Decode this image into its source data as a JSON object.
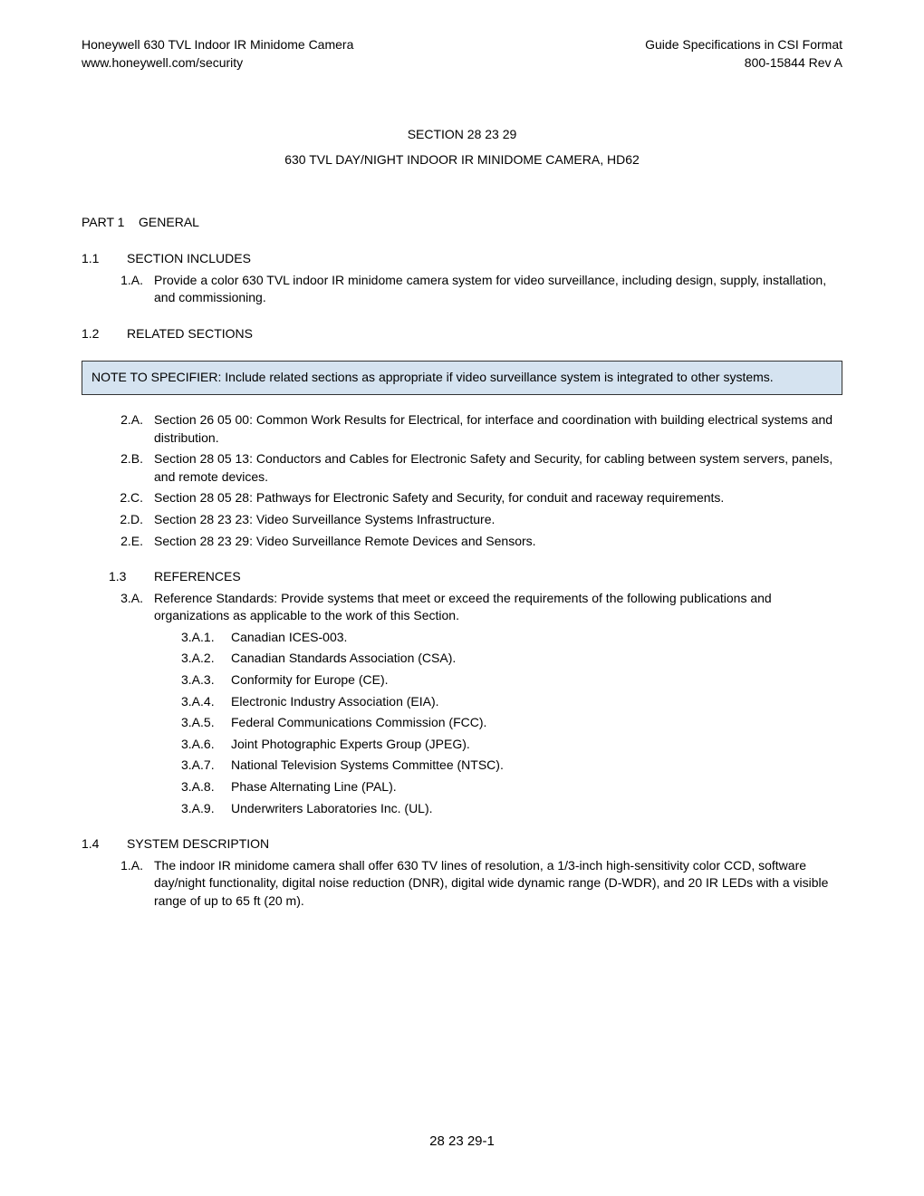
{
  "header": {
    "left_line1": "Honeywell 630 TVL Indoor IR Minidome Camera",
    "left_line2": "www.honeywell.com/security",
    "right_line1": "Guide Specifications in CSI Format",
    "right_line2": "800-15844 Rev A"
  },
  "section": {
    "number": "SECTION 28 23 29",
    "title": "630 TVL DAY/NIGHT INDOOR IR MINIDOME CAMERA, HD62"
  },
  "part1": {
    "heading_label": "PART 1",
    "heading_text": "GENERAL"
  },
  "sub11": {
    "label": "1.1",
    "title": "SECTION INCLUDES",
    "item_1a_label": "1.A.",
    "item_1a_text": "Provide a color 630 TVL indoor IR minidome camera system for video surveillance, including design, supply, installation, and commissioning."
  },
  "sub12": {
    "label": "1.2",
    "title": "RELATED SECTIONS"
  },
  "note": "NOTE TO SPECIFIER: Include related sections as appropriate if video surveillance system is integrated to other systems.",
  "sub12_items": {
    "a_label": "2.A.",
    "a_text": "Section 26 05 00: Common Work Results for Electrical, for interface and coordination with building electrical systems and distribution.",
    "b_label": "2.B.",
    "b_text": "Section 28 05 13: Conductors and Cables for Electronic Safety and Security, for cabling between system servers, panels, and remote devices.",
    "c_label": "2.C.",
    "c_text": "Section 28 05 28: Pathways for Electronic Safety and Security, for conduit and raceway requirements.",
    "d_label": "2.D.",
    "d_text": "Section 28 23 23: Video Surveillance Systems Infrastructure.",
    "e_label": "2.E.",
    "e_text": "Section 28 23 29: Video Surveillance Remote Devices and Sensors."
  },
  "sub13": {
    "label": "1.3",
    "title": "REFERENCES",
    "a_label": "3.A.",
    "a_text": "Reference Standards: Provide systems that meet or exceed the requirements of the following publications and organizations as applicable to the work of this Section.",
    "a1_label": "3.A.1.",
    "a1_text": "Canadian ICES-003.",
    "a2_label": "3.A.2.",
    "a2_text": "Canadian Standards Association (CSA).",
    "a3_label": "3.A.3.",
    "a3_text": "Conformity for Europe (CE).",
    "a4_label": "3.A.4.",
    "a4_text": "Electronic Industry Association (EIA).",
    "a5_label": "3.A.5.",
    "a5_text": "Federal Communications Commission (FCC).",
    "a6_label": "3.A.6.",
    "a6_text": "Joint Photographic Experts Group (JPEG).",
    "a7_label": "3.A.7.",
    "a7_text": "National Television Systems Committee (NTSC).",
    "a8_label": "3.A.8.",
    "a8_text": "Phase Alternating Line (PAL).",
    "a9_label": "3.A.9.",
    "a9_text": "Underwriters Laboratories Inc. (UL)."
  },
  "sub14": {
    "label": "1.4",
    "title": "SYSTEM DESCRIPTION",
    "a_label": "1.A.",
    "a_text": "The indoor IR minidome camera shall offer 630 TV lines of resolution, a 1/3-inch high-sensitivity color CCD, software day/night functionality, digital noise reduction (DNR), digital wide dynamic range (D-WDR), and 20 IR LEDs with a visible range of up to 65 ft (20 m)."
  },
  "footer": "28 23 29-1"
}
